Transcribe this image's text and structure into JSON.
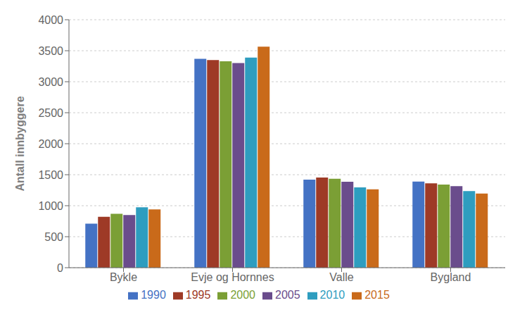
{
  "chart_data": {
    "type": "bar",
    "categories": [
      "Bykle",
      "Evje og Hornnes",
      "Valle",
      "Bygland"
    ],
    "series": [
      {
        "name": "1990",
        "color": "#4472C4",
        "values": [
          710,
          3370,
          1420,
          1390
        ]
      },
      {
        "name": "1995",
        "color": "#9E3A26",
        "values": [
          820,
          3350,
          1455,
          1360
        ]
      },
      {
        "name": "2000",
        "color": "#7B9F35",
        "values": [
          870,
          3330,
          1435,
          1340
        ]
      },
      {
        "name": "2005",
        "color": "#6A4C8C",
        "values": [
          850,
          3300,
          1385,
          1315
        ]
      },
      {
        "name": "2010",
        "color": "#2E9DBF",
        "values": [
          975,
          3390,
          1295,
          1235
        ]
      },
      {
        "name": "2015",
        "color": "#C96A1A",
        "values": [
          940,
          3565,
          1265,
          1195
        ]
      }
    ],
    "ylabel": "Antall innbyggere",
    "ylim": [
      0,
      4000
    ],
    "yticks": [
      0,
      500,
      1000,
      1500,
      2000,
      2500,
      3000,
      3500,
      4000
    ],
    "grid": true,
    "legend": "bottom"
  }
}
